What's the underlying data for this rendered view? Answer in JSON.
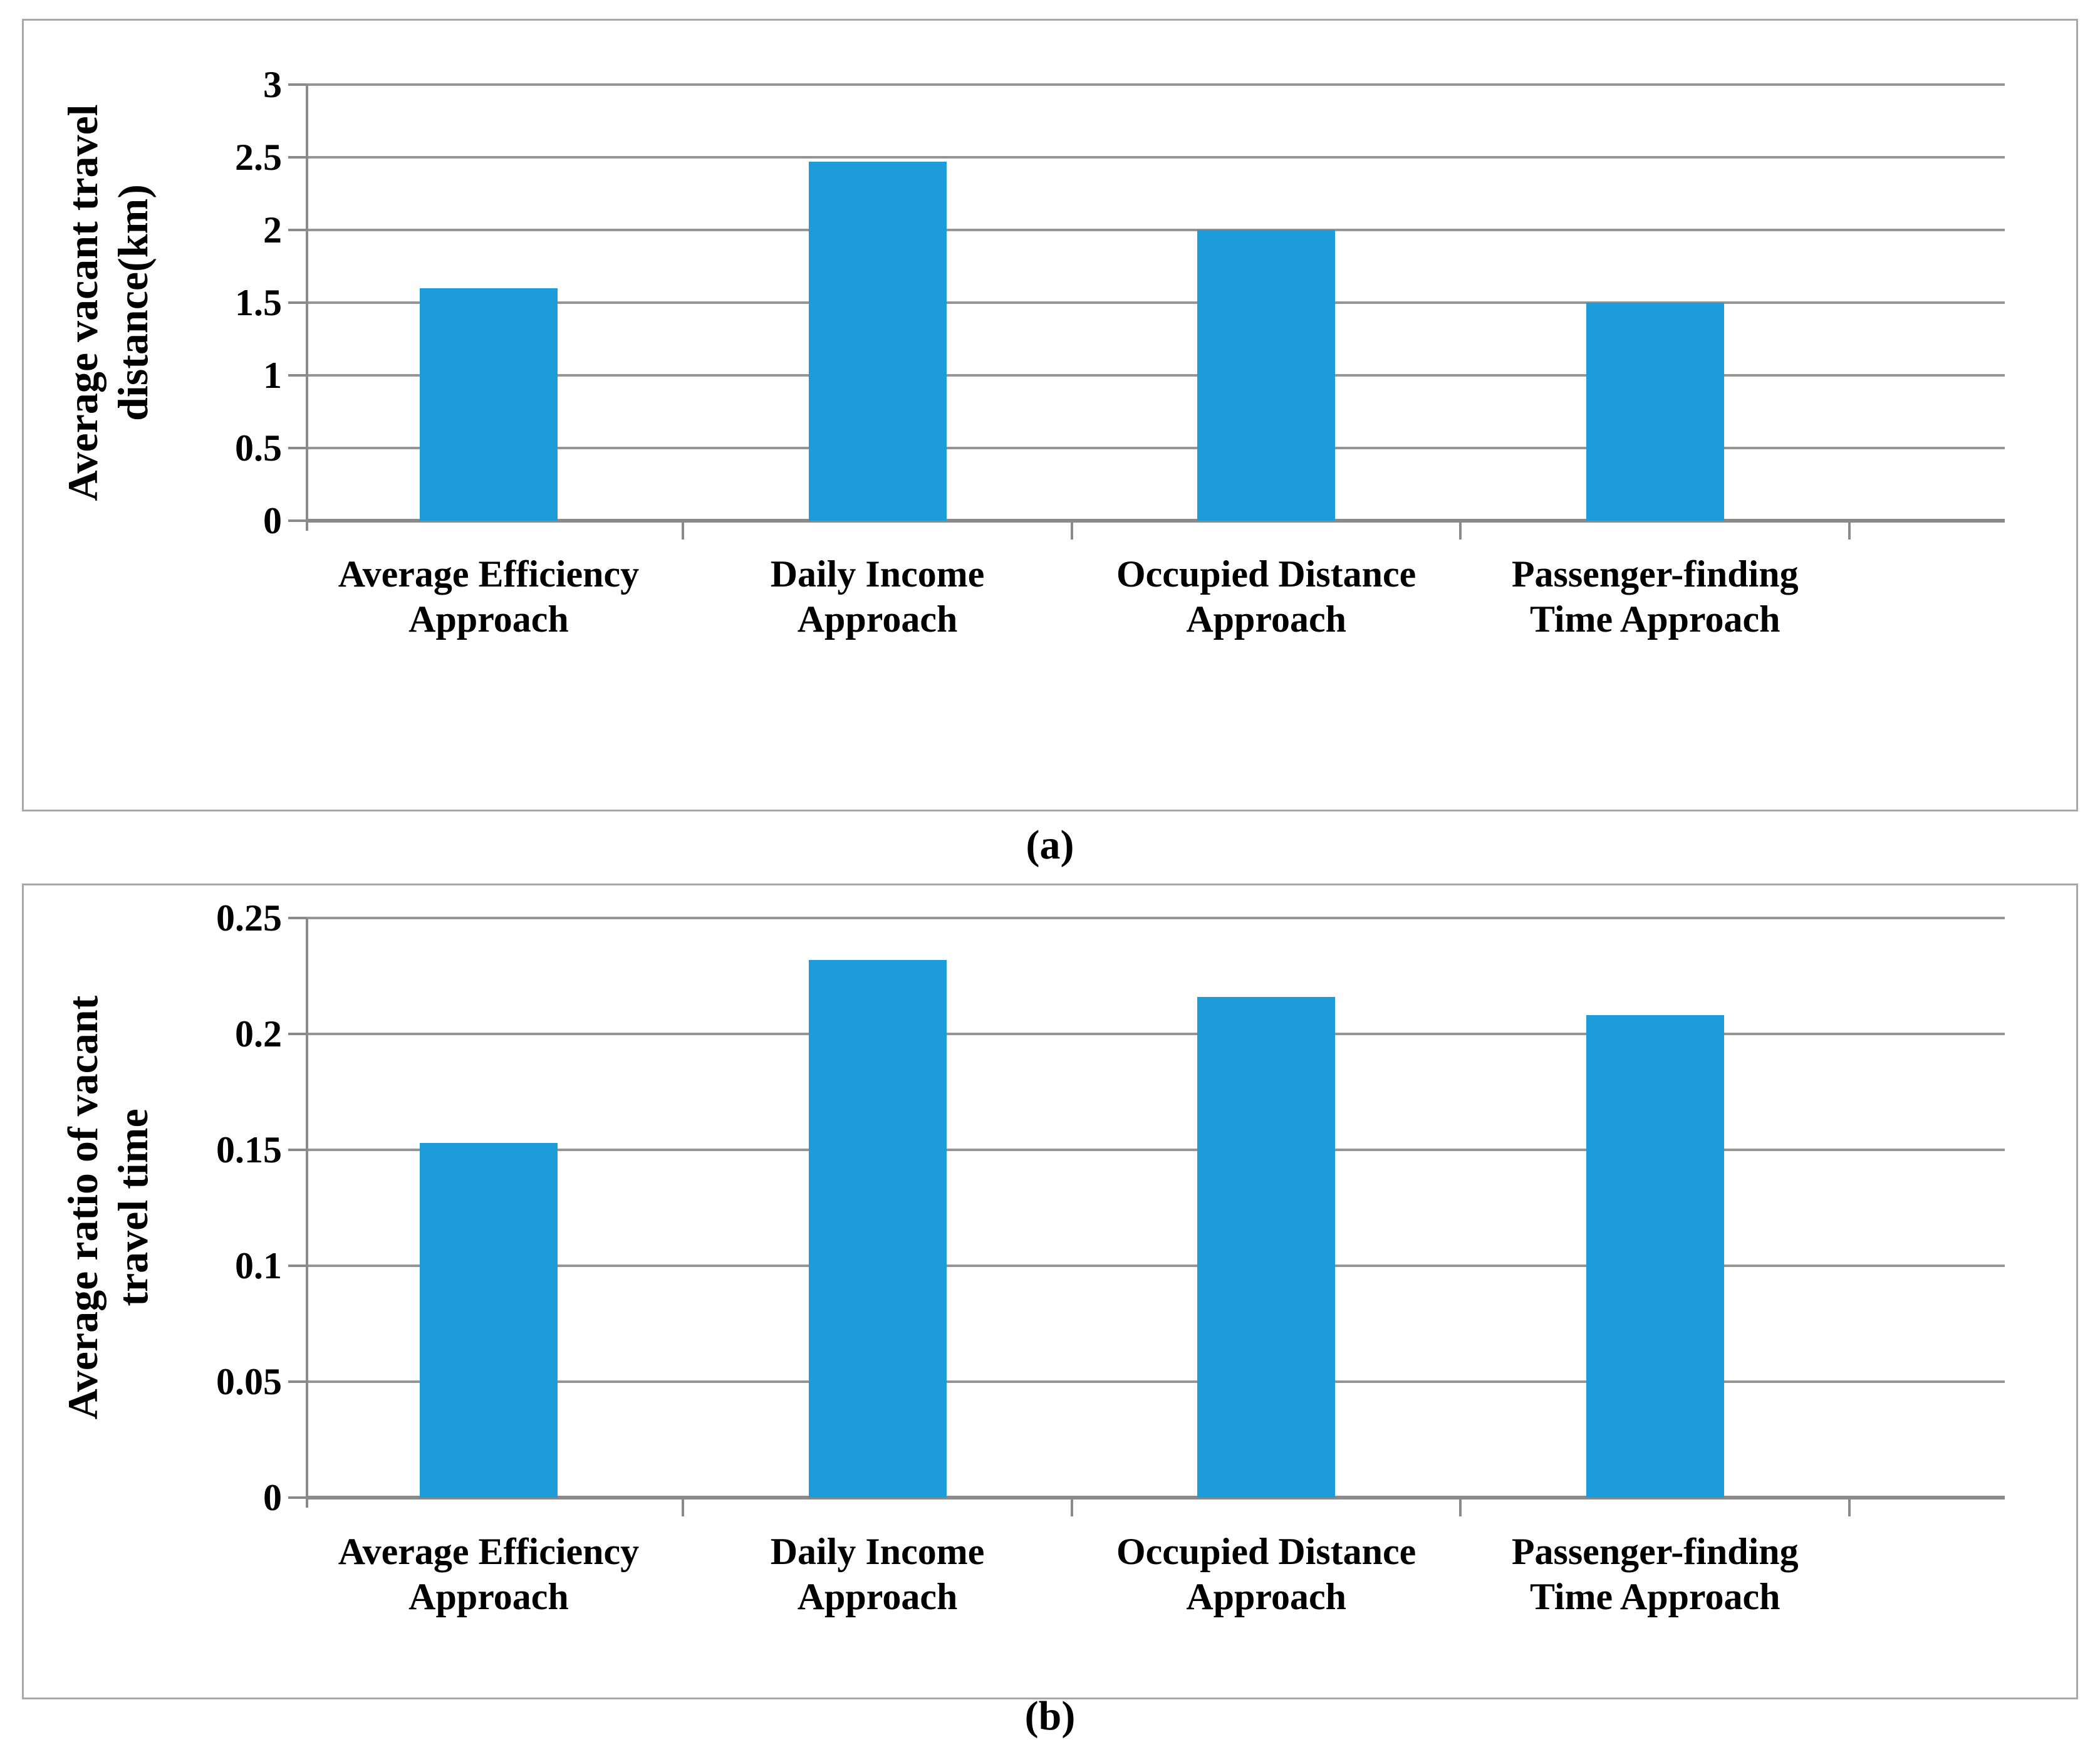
{
  "colors": {
    "bar_fill": "#1D9CDA",
    "gridline": "#959595",
    "axis": "#8A8A8A",
    "box_border": "#A8A8A8",
    "text": "#000000",
    "background": "#FFFFFF"
  },
  "panel_captions": {
    "a": "(a)",
    "b": "(b)"
  },
  "chart_data": [
    {
      "panel": "a",
      "type": "bar",
      "title": "",
      "xlabel": "",
      "ylabel_lines": [
        "Average vacant travel",
        "distance(km)"
      ],
      "ylabel": "Average vacant travel distance(km)",
      "categories": [
        [
          "Average Efficiency",
          "Approach"
        ],
        [
          "Daily Income",
          "Approach"
        ],
        [
          "Occupied Distance",
          "Approach"
        ],
        [
          "Passenger-finding",
          "Time Approach"
        ]
      ],
      "values": [
        1.6,
        2.47,
        2.0,
        1.5
      ],
      "ytick_labels": [
        "3",
        "2.5",
        "2",
        "1.5",
        "1",
        "0.5",
        "0"
      ],
      "ylim": [
        0,
        3
      ],
      "grid": true,
      "legend_position": "none"
    },
    {
      "panel": "b",
      "type": "bar",
      "title": "",
      "xlabel": "",
      "ylabel_lines": [
        "Average ratio of vacant",
        "travel time"
      ],
      "ylabel": "Average ratio of vacant travel time",
      "categories": [
        [
          "Average Efficiency",
          "Approach"
        ],
        [
          "Daily Income",
          "Approach"
        ],
        [
          "Occupied Distance",
          "Approach"
        ],
        [
          "Passenger-finding",
          "Time Approach"
        ]
      ],
      "values": [
        0.153,
        0.232,
        0.216,
        0.208
      ],
      "ytick_labels": [
        "0.25",
        "0.2",
        "0.15",
        "0.1",
        "0.05",
        "0"
      ],
      "ylim": [
        0,
        0.25
      ],
      "grid": true,
      "legend_position": "none"
    }
  ]
}
